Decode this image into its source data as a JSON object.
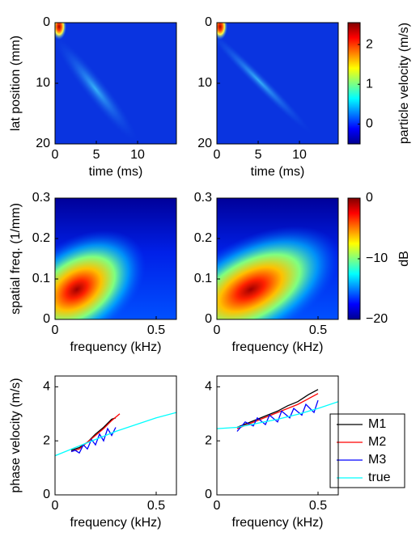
{
  "chart_data": [
    {
      "type": "heatmap",
      "xlabel": "time (ms)",
      "ylabel": "lat position (mm)",
      "xlim": [
        0,
        14.7
      ],
      "xticks": [
        0,
        5,
        10
      ],
      "ylim": [
        0,
        20
      ],
      "yticks": [
        0,
        10,
        20
      ],
      "yreverse": true
    },
    {
      "type": "heatmap",
      "xlabel": "time (ms)",
      "xlim": [
        0,
        14.7
      ],
      "xticks": [
        0,
        5,
        10
      ],
      "ylim": [
        0,
        20
      ],
      "yticks": [
        0,
        10,
        20
      ],
      "yreverse": true,
      "colorbar": {
        "label": "particle velocity (m/s)",
        "lim": [
          -0.5,
          2.55
        ],
        "ticks": [
          0,
          1,
          2
        ]
      }
    },
    {
      "type": "heatmap",
      "xlabel": "frequency (kHz)",
      "ylabel": "spatial freq. (1/mm)",
      "xlim": [
        0,
        0.6
      ],
      "xticks": [
        0,
        0.5
      ],
      "ylim": [
        0,
        0.3
      ],
      "yticks": [
        0,
        0.1,
        0.2,
        0.3
      ]
    },
    {
      "type": "heatmap",
      "xlabel": "frequency (kHz)",
      "xlim": [
        0,
        0.6
      ],
      "xticks": [
        0,
        0.5
      ],
      "ylim": [
        0,
        0.3
      ],
      "yticks": [
        0,
        0.1,
        0.2,
        0.3
      ],
      "colorbar": {
        "label": "dB",
        "lim": [
          -20,
          0
        ],
        "ticks": [
          {
            "value": -20,
            "label": "−20"
          },
          {
            "value": -10,
            "label": "−10"
          },
          0
        ]
      }
    },
    {
      "type": "line",
      "xlabel": "frequency (kHz)",
      "ylabel": "phase velocity (m/s)",
      "xlim": [
        0,
        0.6
      ],
      "xticks": [
        0,
        0.5
      ],
      "ylim": [
        0,
        4.4
      ],
      "yticks": [
        0,
        2,
        4
      ],
      "series": [
        {
          "name": "M1",
          "color": "#000000",
          "x": [
            0.08,
            0.12,
            0.16,
            0.2,
            0.24,
            0.28,
            0.3
          ],
          "values": [
            1.65,
            1.75,
            1.95,
            2.25,
            2.5,
            2.8,
            2.85
          ]
        },
        {
          "name": "M2",
          "color": "#ff0000",
          "x": [
            0.08,
            0.12,
            0.16,
            0.2,
            0.24,
            0.28,
            0.32
          ],
          "values": [
            1.6,
            1.7,
            1.95,
            2.2,
            2.45,
            2.75,
            3.0
          ]
        },
        {
          "name": "M3",
          "color": "#0000ff",
          "x": [
            0.08,
            0.1,
            0.12,
            0.14,
            0.16,
            0.18,
            0.2,
            0.22,
            0.24,
            0.26,
            0.28,
            0.3
          ],
          "values": [
            1.6,
            1.65,
            1.55,
            1.85,
            1.7,
            2.05,
            1.85,
            2.25,
            2.0,
            2.45,
            2.2,
            2.5
          ]
        },
        {
          "name": "true",
          "color": "#00ffff",
          "x": [
            0,
            0.1,
            0.2,
            0.3,
            0.4,
            0.5,
            0.6
          ],
          "values": [
            1.45,
            1.75,
            2.05,
            2.35,
            2.6,
            2.85,
            3.05
          ]
        }
      ]
    },
    {
      "type": "line",
      "xlabel": "frequency (kHz)",
      "xlim": [
        0,
        0.6
      ],
      "xticks": [
        0,
        0.5
      ],
      "ylim": [
        0,
        4.4
      ],
      "yticks": [
        0,
        2,
        4
      ],
      "legend": "right",
      "series": [
        {
          "name": "M1",
          "color": "#000000",
          "x": [
            0.1,
            0.15,
            0.2,
            0.25,
            0.3,
            0.35,
            0.4,
            0.45,
            0.5
          ],
          "values": [
            2.5,
            2.65,
            2.8,
            2.95,
            3.1,
            3.3,
            3.45,
            3.7,
            3.9
          ]
        },
        {
          "name": "M2",
          "color": "#ff0000",
          "x": [
            0.1,
            0.15,
            0.2,
            0.25,
            0.3,
            0.35,
            0.4,
            0.45,
            0.5
          ],
          "values": [
            2.45,
            2.6,
            2.75,
            2.9,
            3.05,
            3.2,
            3.35,
            3.55,
            3.75
          ]
        },
        {
          "name": "M3",
          "color": "#0000ff",
          "x": [
            0.1,
            0.14,
            0.18,
            0.2,
            0.24,
            0.26,
            0.3,
            0.32,
            0.36,
            0.38,
            0.42,
            0.44,
            0.48,
            0.5
          ],
          "values": [
            2.35,
            2.7,
            2.55,
            2.85,
            2.6,
            2.95,
            2.7,
            3.1,
            2.85,
            3.2,
            2.95,
            3.35,
            3.05,
            3.5
          ]
        },
        {
          "name": "true",
          "color": "#00ffff",
          "x": [
            0,
            0.1,
            0.2,
            0.3,
            0.4,
            0.5,
            0.6
          ],
          "values": [
            2.45,
            2.5,
            2.65,
            2.8,
            2.98,
            3.2,
            3.45
          ]
        }
      ]
    }
  ]
}
